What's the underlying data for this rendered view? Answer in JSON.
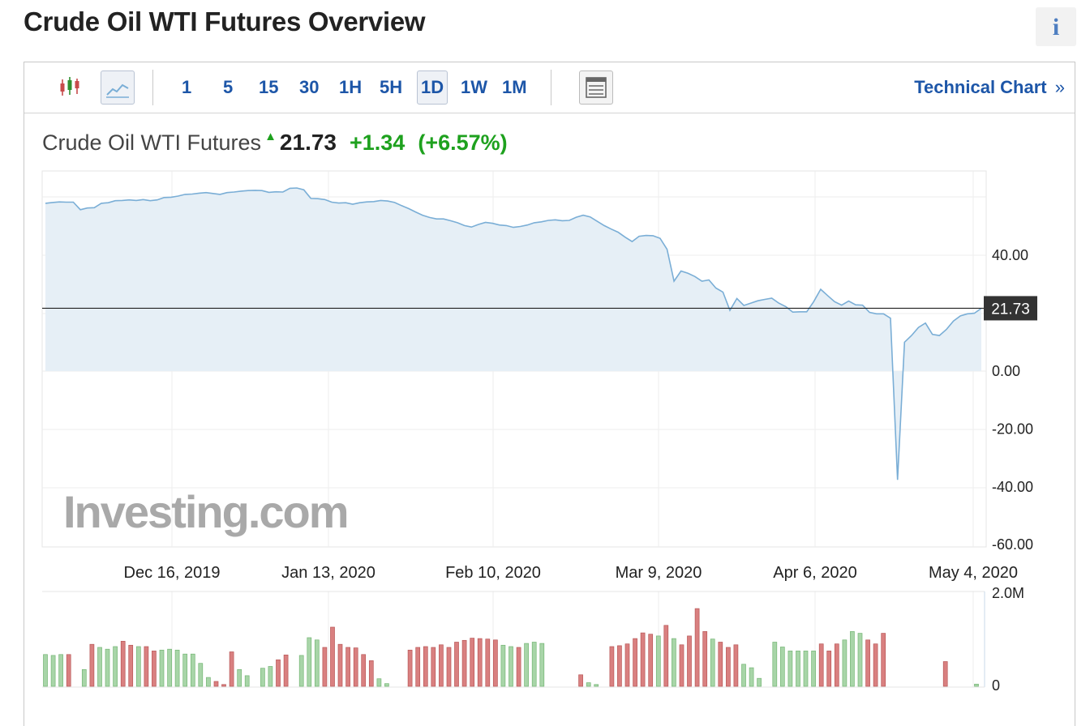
{
  "page_title": "Crude Oil WTI Futures Overview",
  "info_icon": "i",
  "toolbar": {
    "candlestick_icon": "candlestick-chart-icon",
    "line_icon": "line-chart-icon",
    "intervals": [
      "1",
      "5",
      "15",
      "30",
      "1H",
      "5H",
      "1D",
      "1W",
      "1M"
    ],
    "active_interval": "1D",
    "table_icon": "table-view-icon",
    "technical_chart": "Technical Chart",
    "technical_chart_arrow": "»"
  },
  "quote": {
    "name": "Crude Oil WTI Futures",
    "arrow": "▲",
    "price": "21.73",
    "change": "+1.34",
    "change_pct": "(+6.57%)"
  },
  "colors": {
    "line": "#7aaed6",
    "area": "#e6eff6",
    "up_bar": "#a8d5a8",
    "down_bar": "#d98080",
    "price_tag_bg": "#333333",
    "link": "#1d56a8",
    "up_text": "#1ea11e"
  },
  "chart_data": {
    "type": "area",
    "x_labels": [
      "Dec 16, 2019",
      "Jan 13, 2020",
      "Feb 10, 2020",
      "Mar 9, 2020",
      "Apr 6, 2020",
      "May 4, 2020"
    ],
    "y_ticks": [
      "40.00",
      "0.00",
      "-20.00",
      "-40.00",
      "-60.00"
    ],
    "ylim": [
      -60,
      70
    ],
    "last_price_label": "21.73",
    "last_price": 21.73,
    "grid": true,
    "watermark": "Investing.com",
    "series": [
      {
        "values": [
          58.0,
          58.3,
          58.5,
          58.4,
          58.4,
          55.8,
          56.4,
          56.5,
          58.0,
          58.2,
          58.9,
          59.0,
          59.2,
          59.0,
          59.3,
          58.9,
          59.2,
          60.0,
          60.1,
          60.5,
          61.1,
          61.2,
          61.5,
          61.7,
          61.4,
          61.1,
          61.7,
          61.9,
          62.2,
          62.4,
          62.5,
          62.4,
          61.8,
          62.0,
          61.9,
          63.2,
          63.3,
          62.7,
          59.7,
          59.6,
          59.3,
          58.4,
          58.1,
          58.2,
          57.7,
          58.2,
          58.5,
          58.6,
          59.0,
          58.8,
          58.3,
          57.2,
          56.2,
          55.0,
          53.9,
          53.1,
          52.6,
          52.6,
          52.0,
          51.3,
          50.3,
          49.8,
          50.7,
          51.4,
          51.1,
          50.5,
          50.3,
          49.7,
          50.0,
          50.5,
          51.3,
          51.6,
          52.1,
          52.3,
          52.0,
          52.1,
          53.2,
          53.9,
          53.3,
          51.8,
          50.3,
          49.1,
          48.0,
          46.3,
          44.8,
          46.6,
          46.9,
          46.8,
          45.9,
          42.1,
          31.1,
          34.6,
          33.8,
          32.7,
          31.1,
          31.5,
          28.7,
          27.3,
          21.0,
          25.1,
          22.7,
          23.5,
          24.3,
          24.8,
          25.2,
          23.5,
          22.3,
          20.4,
          20.5,
          20.5,
          24.0,
          28.3,
          26.1,
          24.0,
          22.8,
          24.2,
          22.9,
          22.8,
          20.3,
          19.8,
          19.8,
          18.3,
          -37.6,
          10.0,
          12.3,
          15.1,
          16.6,
          12.7,
          12.3,
          14.4,
          17.3,
          19.1,
          19.8,
          20.0,
          21.7
        ]
      }
    ],
    "volume": {
      "max_label": "2.0M",
      "min_label": "0",
      "max": 2000000,
      "bars": [
        [
          720000,
          "up"
        ],
        [
          700000,
          "up"
        ],
        [
          720000,
          "up"
        ],
        [
          720000,
          "down"
        ],
        [
          0,
          "none"
        ],
        [
          380000,
          "up"
        ],
        [
          950000,
          "down"
        ],
        [
          880000,
          "up"
        ],
        [
          840000,
          "up"
        ],
        [
          900000,
          "up"
        ],
        [
          1020000,
          "down"
        ],
        [
          930000,
          "down"
        ],
        [
          900000,
          "up"
        ],
        [
          900000,
          "down"
        ],
        [
          800000,
          "down"
        ],
        [
          820000,
          "up"
        ],
        [
          840000,
          "up"
        ],
        [
          820000,
          "up"
        ],
        [
          730000,
          "up"
        ],
        [
          730000,
          "up"
        ],
        [
          520000,
          "up"
        ],
        [
          200000,
          "up"
        ],
        [
          110000,
          "down"
        ],
        [
          40000,
          "down"
        ],
        [
          780000,
          "down"
        ],
        [
          380000,
          "up"
        ],
        [
          240000,
          "up"
        ],
        [
          0,
          "none"
        ],
        [
          410000,
          "up"
        ],
        [
          450000,
          "up"
        ],
        [
          600000,
          "down"
        ],
        [
          710000,
          "down"
        ],
        [
          0,
          "none"
        ],
        [
          700000,
          "up"
        ],
        [
          1100000,
          "up"
        ],
        [
          1050000,
          "up"
        ],
        [
          880000,
          "down"
        ],
        [
          1340000,
          "down"
        ],
        [
          950000,
          "down"
        ],
        [
          880000,
          "down"
        ],
        [
          870000,
          "down"
        ],
        [
          720000,
          "down"
        ],
        [
          580000,
          "down"
        ],
        [
          170000,
          "up"
        ],
        [
          60000,
          "up"
        ],
        [
          0,
          "none"
        ],
        [
          0,
          "none"
        ],
        [
          820000,
          "down"
        ],
        [
          880000,
          "down"
        ],
        [
          900000,
          "down"
        ],
        [
          880000,
          "down"
        ],
        [
          940000,
          "down"
        ],
        [
          880000,
          "down"
        ],
        [
          1000000,
          "down"
        ],
        [
          1040000,
          "down"
        ],
        [
          1090000,
          "down"
        ],
        [
          1080000,
          "down"
        ],
        [
          1070000,
          "down"
        ],
        [
          1050000,
          "down"
        ],
        [
          930000,
          "up"
        ],
        [
          900000,
          "up"
        ],
        [
          880000,
          "down"
        ],
        [
          970000,
          "up"
        ],
        [
          1000000,
          "up"
        ],
        [
          970000,
          "up"
        ],
        [
          0,
          "none"
        ],
        [
          0,
          "none"
        ],
        [
          0,
          "none"
        ],
        [
          0,
          "none"
        ],
        [
          260000,
          "down"
        ],
        [
          80000,
          "up"
        ],
        [
          40000,
          "up"
        ],
        [
          0,
          "none"
        ],
        [
          900000,
          "down"
        ],
        [
          920000,
          "down"
        ],
        [
          960000,
          "down"
        ],
        [
          1080000,
          "down"
        ],
        [
          1210000,
          "down"
        ],
        [
          1180000,
          "down"
        ],
        [
          1140000,
          "up"
        ],
        [
          1380000,
          "down"
        ],
        [
          1080000,
          "up"
        ],
        [
          940000,
          "down"
        ],
        [
          1140000,
          "down"
        ],
        [
          1760000,
          "down"
        ],
        [
          1240000,
          "down"
        ],
        [
          1070000,
          "up"
        ],
        [
          1000000,
          "down"
        ],
        [
          880000,
          "down"
        ],
        [
          940000,
          "down"
        ],
        [
          500000,
          "up"
        ],
        [
          420000,
          "up"
        ],
        [
          180000,
          "up"
        ],
        [
          0,
          "none"
        ],
        [
          1000000,
          "up"
        ],
        [
          890000,
          "up"
        ],
        [
          800000,
          "up"
        ],
        [
          800000,
          "up"
        ],
        [
          800000,
          "up"
        ],
        [
          800000,
          "up"
        ],
        [
          960000,
          "down"
        ],
        [
          800000,
          "down"
        ],
        [
          960000,
          "down"
        ],
        [
          1050000,
          "up"
        ],
        [
          1240000,
          "up"
        ],
        [
          1200000,
          "up"
        ],
        [
          1050000,
          "down"
        ],
        [
          960000,
          "down"
        ],
        [
          1200000,
          "down"
        ],
        [
          0,
          "none"
        ],
        [
          0,
          "none"
        ],
        [
          0,
          "none"
        ],
        [
          0,
          "none"
        ],
        [
          0,
          "none"
        ],
        [
          0,
          "none"
        ],
        [
          0,
          "none"
        ],
        [
          560000,
          "down"
        ],
        [
          0,
          "none"
        ],
        [
          0,
          "none"
        ],
        [
          0,
          "none"
        ],
        [
          50000,
          "up"
        ]
      ]
    }
  }
}
